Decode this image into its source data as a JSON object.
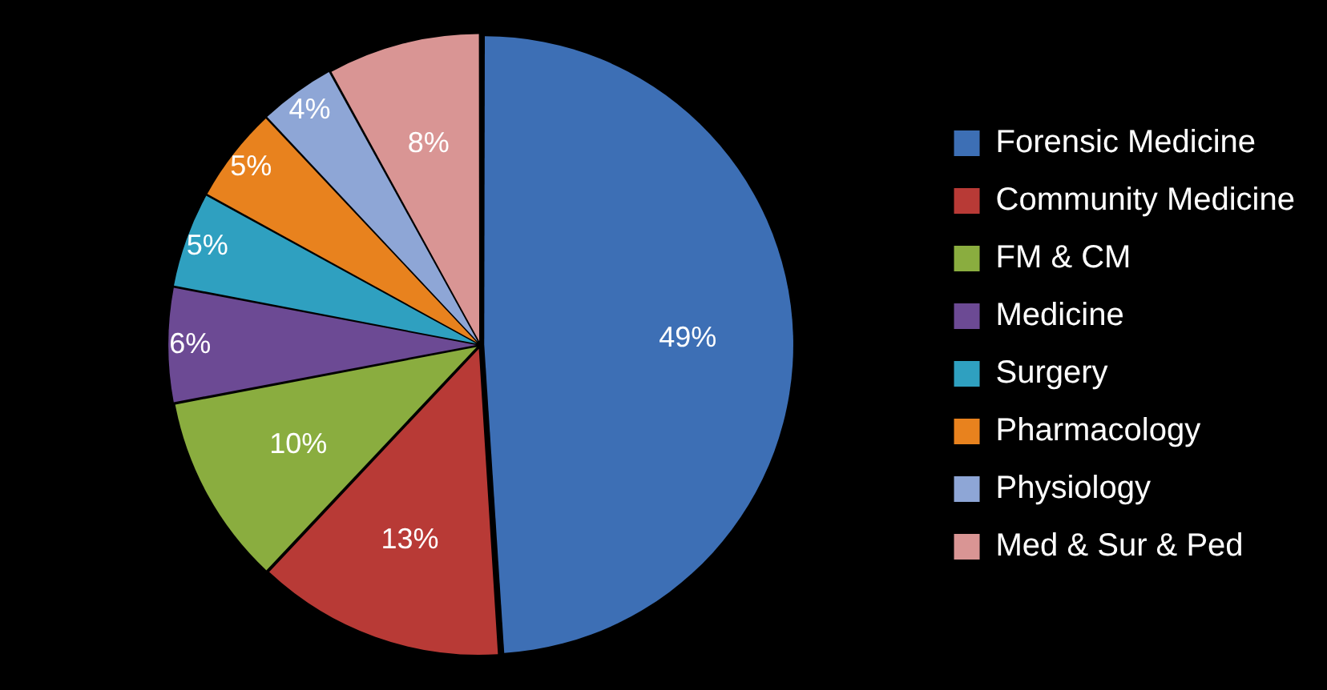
{
  "chart_data": {
    "type": "pie",
    "categories": [
      "Forensic Medicine",
      "Community Medicine",
      "FM & CM",
      "Medicine",
      "Surgery",
      "Pharmacology",
      "Physiology",
      "Med & Sur & Ped"
    ],
    "values": [
      49,
      13,
      10,
      6,
      5,
      5,
      4,
      8
    ],
    "value_labels": [
      "49%",
      "13%",
      "10%",
      "6%",
      "5%",
      "5%",
      "4%",
      "8%"
    ],
    "colors": [
      "#3d6fb5",
      "#b83a36",
      "#8aad3f",
      "#6c4a94",
      "#2fa0c0",
      "#e8821e",
      "#8ea6d6",
      "#d99594"
    ],
    "legend": "right"
  }
}
